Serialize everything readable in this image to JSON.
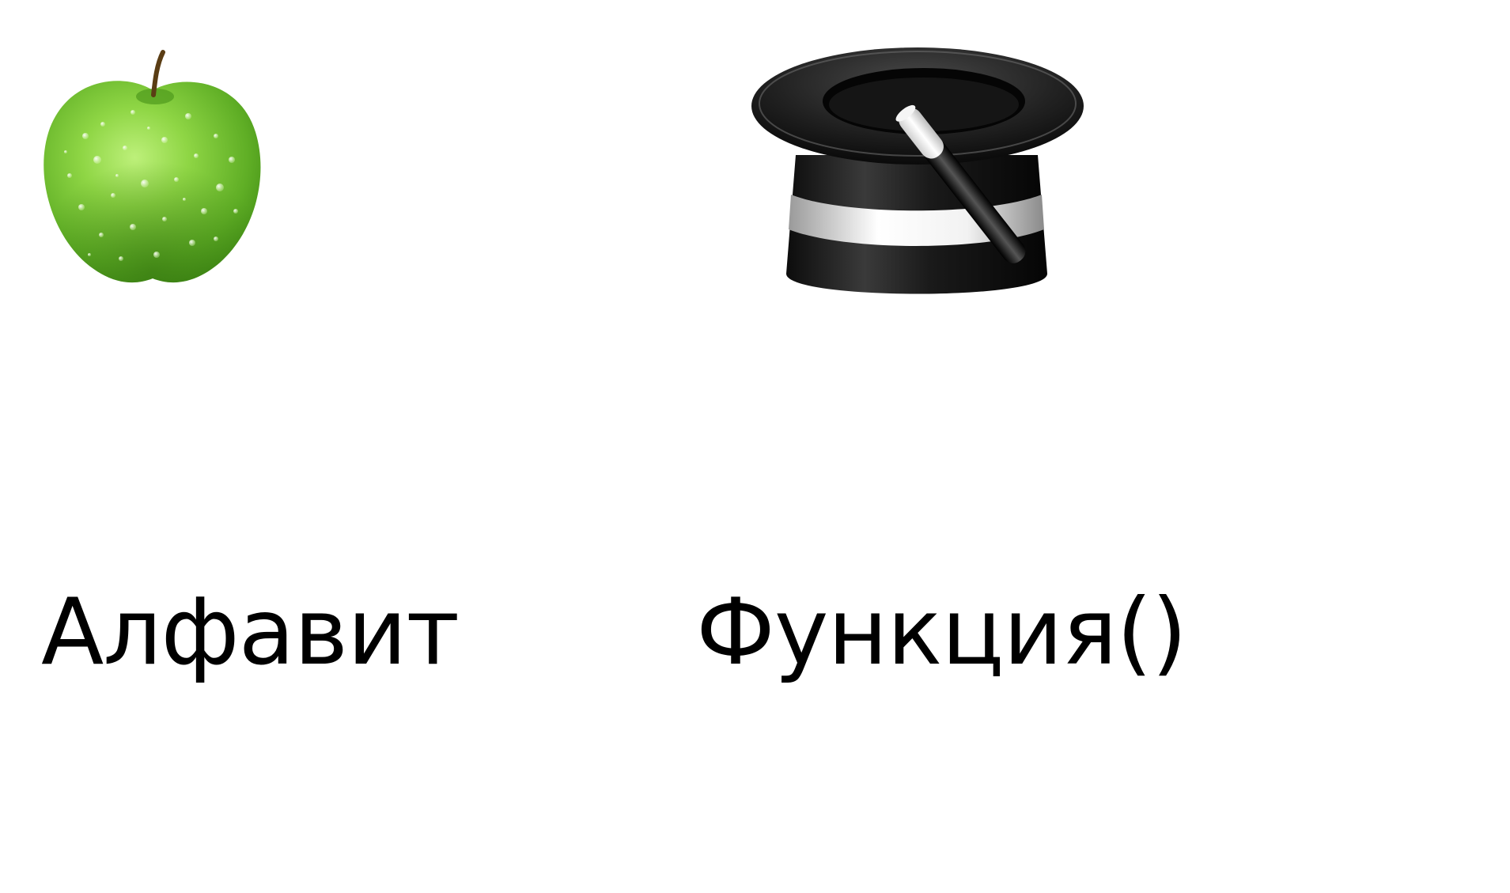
{
  "items": [
    {
      "icon": "green-apple-icon",
      "caption": "Алфавит"
    },
    {
      "icon": "magic-hat-wand-icon",
      "caption": "Функция()"
    }
  ],
  "colors": {
    "background": "#ffffff",
    "text": "#000000",
    "apple": "#7cc43a",
    "hat": "#151515"
  }
}
